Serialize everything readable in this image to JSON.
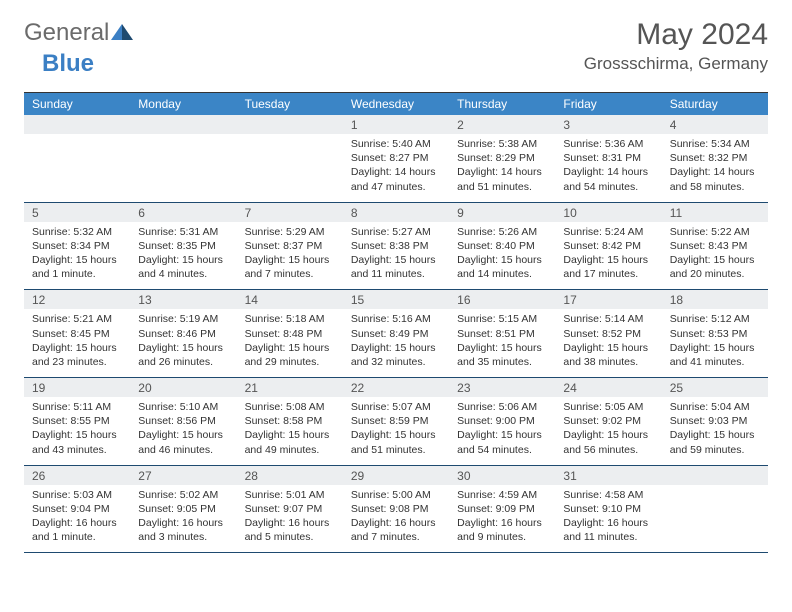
{
  "logo": {
    "general": "General",
    "blue": "Blue"
  },
  "title": "May 2024",
  "location": "Grossschirma, Germany",
  "colors": {
    "header_bg": "#3b85c6",
    "daynum_bg": "#eceef0",
    "border": "#1e4a70",
    "logo_gray": "#6b6b6b",
    "logo_blue": "#3b7fc4"
  },
  "dayNames": [
    "Sunday",
    "Monday",
    "Tuesday",
    "Wednesday",
    "Thursday",
    "Friday",
    "Saturday"
  ],
  "weeks": [
    [
      {
        "n": "",
        "lines": [
          "",
          "",
          "",
          ""
        ]
      },
      {
        "n": "",
        "lines": [
          "",
          "",
          "",
          ""
        ]
      },
      {
        "n": "",
        "lines": [
          "",
          "",
          "",
          ""
        ]
      },
      {
        "n": "1",
        "lines": [
          "Sunrise: 5:40 AM",
          "Sunset: 8:27 PM",
          "Daylight: 14 hours",
          "and 47 minutes."
        ]
      },
      {
        "n": "2",
        "lines": [
          "Sunrise: 5:38 AM",
          "Sunset: 8:29 PM",
          "Daylight: 14 hours",
          "and 51 minutes."
        ]
      },
      {
        "n": "3",
        "lines": [
          "Sunrise: 5:36 AM",
          "Sunset: 8:31 PM",
          "Daylight: 14 hours",
          "and 54 minutes."
        ]
      },
      {
        "n": "4",
        "lines": [
          "Sunrise: 5:34 AM",
          "Sunset: 8:32 PM",
          "Daylight: 14 hours",
          "and 58 minutes."
        ]
      }
    ],
    [
      {
        "n": "5",
        "lines": [
          "Sunrise: 5:32 AM",
          "Sunset: 8:34 PM",
          "Daylight: 15 hours",
          "and 1 minute."
        ]
      },
      {
        "n": "6",
        "lines": [
          "Sunrise: 5:31 AM",
          "Sunset: 8:35 PM",
          "Daylight: 15 hours",
          "and 4 minutes."
        ]
      },
      {
        "n": "7",
        "lines": [
          "Sunrise: 5:29 AM",
          "Sunset: 8:37 PM",
          "Daylight: 15 hours",
          "and 7 minutes."
        ]
      },
      {
        "n": "8",
        "lines": [
          "Sunrise: 5:27 AM",
          "Sunset: 8:38 PM",
          "Daylight: 15 hours",
          "and 11 minutes."
        ]
      },
      {
        "n": "9",
        "lines": [
          "Sunrise: 5:26 AM",
          "Sunset: 8:40 PM",
          "Daylight: 15 hours",
          "and 14 minutes."
        ]
      },
      {
        "n": "10",
        "lines": [
          "Sunrise: 5:24 AM",
          "Sunset: 8:42 PM",
          "Daylight: 15 hours",
          "and 17 minutes."
        ]
      },
      {
        "n": "11",
        "lines": [
          "Sunrise: 5:22 AM",
          "Sunset: 8:43 PM",
          "Daylight: 15 hours",
          "and 20 minutes."
        ]
      }
    ],
    [
      {
        "n": "12",
        "lines": [
          "Sunrise: 5:21 AM",
          "Sunset: 8:45 PM",
          "Daylight: 15 hours",
          "and 23 minutes."
        ]
      },
      {
        "n": "13",
        "lines": [
          "Sunrise: 5:19 AM",
          "Sunset: 8:46 PM",
          "Daylight: 15 hours",
          "and 26 minutes."
        ]
      },
      {
        "n": "14",
        "lines": [
          "Sunrise: 5:18 AM",
          "Sunset: 8:48 PM",
          "Daylight: 15 hours",
          "and 29 minutes."
        ]
      },
      {
        "n": "15",
        "lines": [
          "Sunrise: 5:16 AM",
          "Sunset: 8:49 PM",
          "Daylight: 15 hours",
          "and 32 minutes."
        ]
      },
      {
        "n": "16",
        "lines": [
          "Sunrise: 5:15 AM",
          "Sunset: 8:51 PM",
          "Daylight: 15 hours",
          "and 35 minutes."
        ]
      },
      {
        "n": "17",
        "lines": [
          "Sunrise: 5:14 AM",
          "Sunset: 8:52 PM",
          "Daylight: 15 hours",
          "and 38 minutes."
        ]
      },
      {
        "n": "18",
        "lines": [
          "Sunrise: 5:12 AM",
          "Sunset: 8:53 PM",
          "Daylight: 15 hours",
          "and 41 minutes."
        ]
      }
    ],
    [
      {
        "n": "19",
        "lines": [
          "Sunrise: 5:11 AM",
          "Sunset: 8:55 PM",
          "Daylight: 15 hours",
          "and 43 minutes."
        ]
      },
      {
        "n": "20",
        "lines": [
          "Sunrise: 5:10 AM",
          "Sunset: 8:56 PM",
          "Daylight: 15 hours",
          "and 46 minutes."
        ]
      },
      {
        "n": "21",
        "lines": [
          "Sunrise: 5:08 AM",
          "Sunset: 8:58 PM",
          "Daylight: 15 hours",
          "and 49 minutes."
        ]
      },
      {
        "n": "22",
        "lines": [
          "Sunrise: 5:07 AM",
          "Sunset: 8:59 PM",
          "Daylight: 15 hours",
          "and 51 minutes."
        ]
      },
      {
        "n": "23",
        "lines": [
          "Sunrise: 5:06 AM",
          "Sunset: 9:00 PM",
          "Daylight: 15 hours",
          "and 54 minutes."
        ]
      },
      {
        "n": "24",
        "lines": [
          "Sunrise: 5:05 AM",
          "Sunset: 9:02 PM",
          "Daylight: 15 hours",
          "and 56 minutes."
        ]
      },
      {
        "n": "25",
        "lines": [
          "Sunrise: 5:04 AM",
          "Sunset: 9:03 PM",
          "Daylight: 15 hours",
          "and 59 minutes."
        ]
      }
    ],
    [
      {
        "n": "26",
        "lines": [
          "Sunrise: 5:03 AM",
          "Sunset: 9:04 PM",
          "Daylight: 16 hours",
          "and 1 minute."
        ]
      },
      {
        "n": "27",
        "lines": [
          "Sunrise: 5:02 AM",
          "Sunset: 9:05 PM",
          "Daylight: 16 hours",
          "and 3 minutes."
        ]
      },
      {
        "n": "28",
        "lines": [
          "Sunrise: 5:01 AM",
          "Sunset: 9:07 PM",
          "Daylight: 16 hours",
          "and 5 minutes."
        ]
      },
      {
        "n": "29",
        "lines": [
          "Sunrise: 5:00 AM",
          "Sunset: 9:08 PM",
          "Daylight: 16 hours",
          "and 7 minutes."
        ]
      },
      {
        "n": "30",
        "lines": [
          "Sunrise: 4:59 AM",
          "Sunset: 9:09 PM",
          "Daylight: 16 hours",
          "and 9 minutes."
        ]
      },
      {
        "n": "31",
        "lines": [
          "Sunrise: 4:58 AM",
          "Sunset: 9:10 PM",
          "Daylight: 16 hours",
          "and 11 minutes."
        ]
      },
      {
        "n": "",
        "lines": [
          "",
          "",
          "",
          ""
        ]
      }
    ]
  ]
}
